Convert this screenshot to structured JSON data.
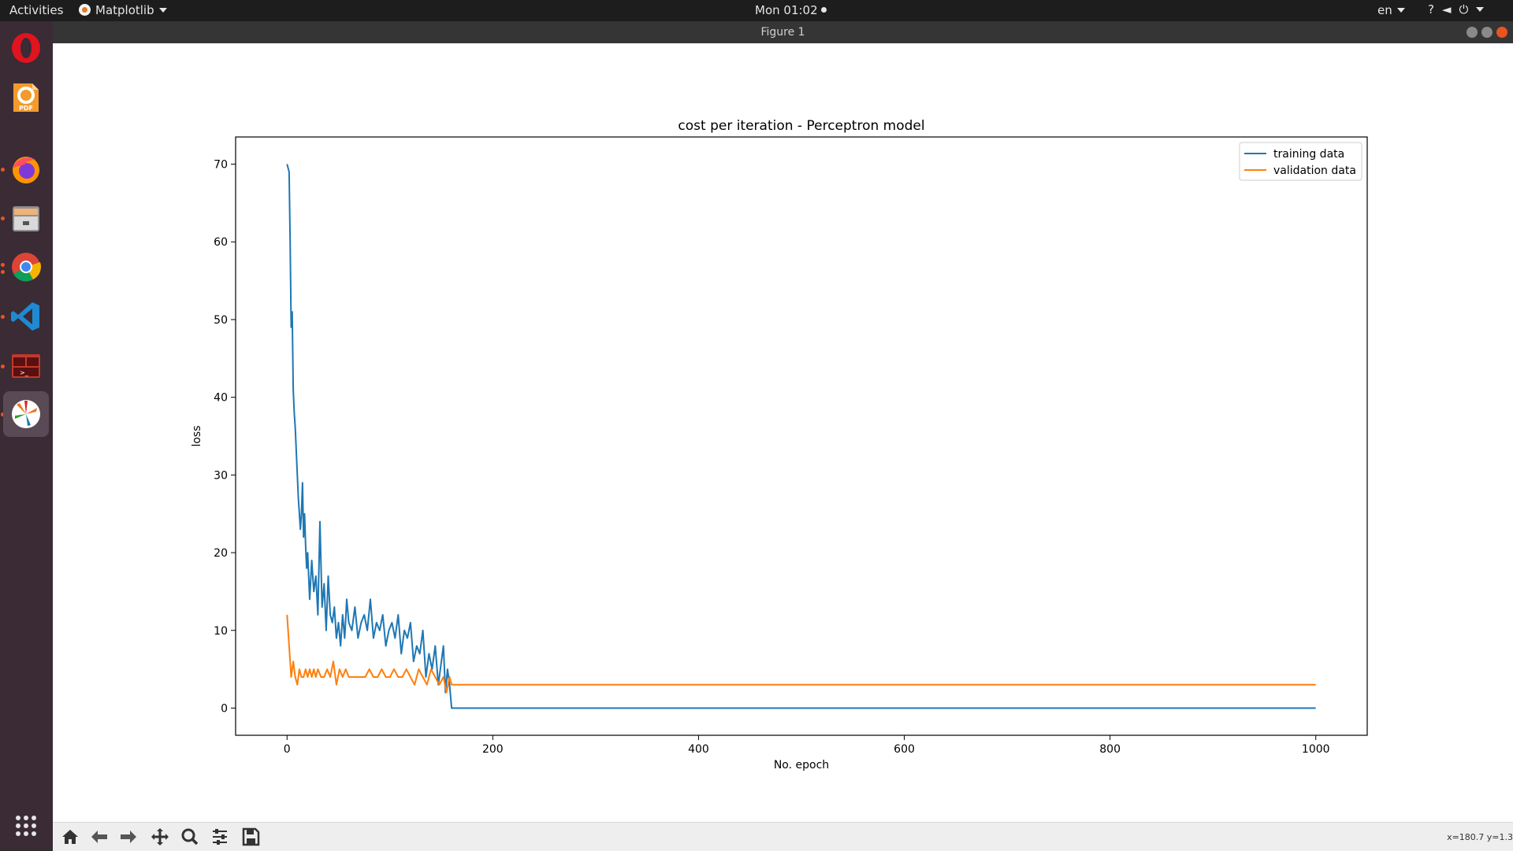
{
  "topbar": {
    "activities": "Activities",
    "app_menu": "Matplotlib",
    "clock": "Mon 01:02",
    "language": "en",
    "system_icons": [
      "accessibility-icon",
      "volume-icon",
      "power-icon"
    ]
  },
  "dock": {
    "apps": [
      {
        "name": "Opera",
        "icon": "opera-icon",
        "color": "#e0141e",
        "running": false
      },
      {
        "name": "PDF Editor",
        "icon": "pdf-icon",
        "color": "#f39a2b",
        "running": false
      },
      {
        "name": "Firefox",
        "icon": "firefox-icon",
        "color": "#ff7139",
        "running": true
      },
      {
        "name": "Files",
        "icon": "files-icon",
        "color": "#9a9a9a",
        "running": true
      },
      {
        "name": "Chrome",
        "icon": "chrome-icon",
        "color": "#4285f4",
        "running": true
      },
      {
        "name": "Visual Studio Code",
        "icon": "vscode-icon",
        "color": "#1f8ad2",
        "running": true
      },
      {
        "name": "Terminal",
        "icon": "terminal-icon",
        "color": "#c0392b",
        "running": true
      },
      {
        "name": "Matplotlib",
        "icon": "matplotlib-icon",
        "color": "#ffffff",
        "running": true,
        "active": true
      }
    ],
    "show_apps_icon": "grid-icon"
  },
  "window": {
    "title": "Figure 1"
  },
  "toolbar": {
    "buttons": [
      "home-icon",
      "back-icon",
      "forward-icon",
      "pan-icon",
      "zoom-icon",
      "configure-icon",
      "save-icon"
    ],
    "coords": "x=180.7 y=1.3"
  },
  "chart_data": {
    "type": "line",
    "title": "cost per iteration - Perceptron model",
    "xlabel": "No. epoch",
    "ylabel": "loss",
    "xlim": [
      -50,
      1050
    ],
    "ylim": [
      -3.5,
      73.5
    ],
    "xticks": [
      0,
      200,
      400,
      600,
      800,
      1000
    ],
    "yticks": [
      0,
      10,
      20,
      30,
      40,
      50,
      60,
      70
    ],
    "legend": "top-right",
    "grid": false,
    "series": [
      {
        "name": "training data",
        "color": "#1f77b4",
        "x": [
          0,
          2,
          3,
          4,
          5,
          6,
          7,
          8,
          9,
          10,
          11,
          12,
          13,
          14,
          15,
          16,
          17,
          18,
          19,
          20,
          22,
          24,
          26,
          28,
          30,
          32,
          34,
          36,
          38,
          40,
          42,
          44,
          46,
          48,
          50,
          52,
          54,
          56,
          58,
          60,
          63,
          66,
          69,
          72,
          75,
          78,
          81,
          84,
          87,
          90,
          93,
          96,
          99,
          102,
          105,
          108,
          111,
          114,
          117,
          120,
          123,
          126,
          129,
          132,
          135,
          138,
          141,
          144,
          147,
          150,
          152,
          154,
          156,
          158,
          160,
          175,
          200,
          400,
          600,
          800,
          1000
        ],
        "y": [
          70,
          69,
          60,
          49,
          51,
          41,
          38,
          36,
          33,
          30,
          27,
          25,
          23,
          25,
          29,
          22,
          25,
          21,
          18,
          20,
          14,
          19,
          15,
          17,
          12,
          24,
          13,
          16,
          10,
          17,
          12,
          11,
          13,
          9,
          11,
          8,
          12,
          9,
          14,
          11,
          10,
          13,
          9,
          11,
          12,
          10,
          14,
          9,
          11,
          10,
          12,
          8,
          10,
          11,
          9,
          12,
          7,
          10,
          9,
          11,
          6,
          8,
          7,
          10,
          4,
          7,
          5,
          8,
          3,
          6,
          8,
          2,
          5,
          3,
          0,
          0,
          0,
          0,
          0,
          0,
          0
        ]
      },
      {
        "name": "validation data",
        "color": "#ff7f0e",
        "x": [
          0,
          2,
          4,
          6,
          8,
          10,
          12,
          14,
          16,
          18,
          20,
          22,
          24,
          26,
          28,
          30,
          33,
          36,
          39,
          42,
          45,
          48,
          51,
          54,
          57,
          60,
          64,
          68,
          72,
          76,
          80,
          84,
          88,
          92,
          96,
          100,
          104,
          108,
          112,
          116,
          120,
          124,
          128,
          132,
          136,
          140,
          144,
          148,
          152,
          155,
          158,
          160,
          180,
          200,
          400,
          600,
          800,
          1000
        ],
        "y": [
          12,
          8,
          4,
          6,
          4,
          3,
          5,
          4,
          4,
          5,
          4,
          5,
          4,
          5,
          4,
          5,
          4,
          4,
          5,
          4,
          6,
          3,
          5,
          4,
          5,
          4,
          4,
          4,
          4,
          4,
          5,
          4,
          4,
          5,
          4,
          4,
          5,
          4,
          4,
          5,
          4,
          3,
          5,
          4,
          3,
          5,
          4,
          3,
          4,
          2,
          4,
          3,
          3,
          3,
          3,
          3,
          3,
          3
        ]
      }
    ]
  }
}
